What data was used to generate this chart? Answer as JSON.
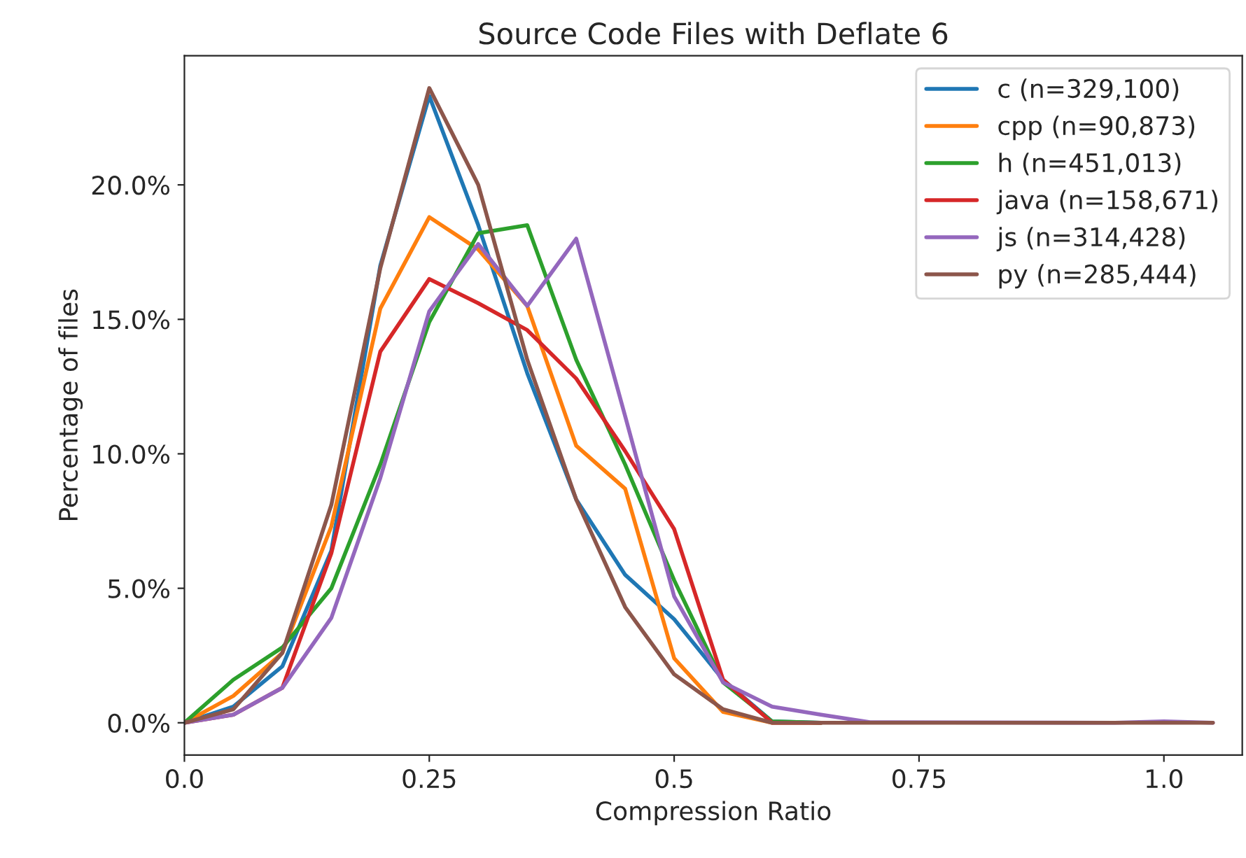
{
  "chart_data": {
    "type": "line",
    "title": "Source Code Files with Deflate 6",
    "xlabel": "Compression Ratio",
    "ylabel": "Percentage of files",
    "x": [
      0,
      0.05,
      0.1,
      0.15,
      0.2,
      0.25,
      0.3,
      0.35,
      0.4,
      0.45,
      0.5,
      0.55,
      0.6,
      0.65,
      0.7,
      0.75,
      0.8,
      0.85,
      0.9,
      0.95,
      1.0,
      1.05
    ],
    "series": [
      {
        "name": "c (n=329,100)",
        "color": "#1f77b4",
        "values": [
          0,
          0.6,
          2.1,
          6.4,
          17.0,
          23.3,
          18.5,
          13.0,
          8.3,
          5.5,
          3.85,
          1.6,
          0.05,
          0,
          null,
          null,
          null,
          null,
          null,
          null,
          null,
          null
        ]
      },
      {
        "name": "cpp (n=90,873)",
        "color": "#ff7f0e",
        "values": [
          0,
          1.0,
          2.6,
          7.3,
          15.4,
          18.8,
          17.6,
          15.5,
          10.3,
          8.7,
          2.4,
          0.4,
          0,
          0,
          null,
          null,
          null,
          null,
          null,
          null,
          null,
          null
        ]
      },
      {
        "name": "h (n=451,013)",
        "color": "#2ca02c",
        "values": [
          0,
          1.6,
          2.8,
          5.0,
          9.6,
          14.9,
          18.2,
          18.5,
          13.5,
          9.6,
          5.3,
          1.5,
          0.05,
          0,
          null,
          null,
          null,
          null,
          null,
          null,
          null,
          null
        ]
      },
      {
        "name": "java (n=158,671)",
        "color": "#d62728",
        "values": [
          0,
          0.3,
          1.3,
          6.3,
          13.8,
          16.5,
          15.6,
          14.6,
          12.8,
          10.1,
          7.2,
          1.6,
          0,
          0,
          null,
          null,
          null,
          null,
          null,
          null,
          null,
          null
        ]
      },
      {
        "name": "js (n=314,428)",
        "color": "#9467bd",
        "values": [
          0,
          0.3,
          1.3,
          3.9,
          9.1,
          15.3,
          17.8,
          15.5,
          18.0,
          11.4,
          4.7,
          1.5,
          0.6,
          0.3,
          0.02,
          null,
          null,
          null,
          null,
          0,
          0.05,
          0
        ]
      },
      {
        "name": "py (n=285,444)",
        "color": "#8c564b",
        "values": [
          0,
          0.5,
          2.6,
          8.1,
          16.9,
          23.6,
          20.0,
          13.5,
          8.3,
          4.3,
          1.8,
          0.5,
          0,
          0,
          0,
          0,
          0,
          0,
          0,
          0,
          0,
          0
        ]
      }
    ],
    "xlim": [
      0,
      1.08
    ],
    "ylim": [
      -1.2,
      24.8
    ],
    "xticks": [
      {
        "value": 0,
        "label": "0.0"
      },
      0.25,
      0.5,
      0.75,
      {
        "value": 1,
        "label": "1.0"
      }
    ],
    "yticks": [
      {
        "value": 0,
        "label": "0.0%"
      },
      {
        "value": 5,
        "label": "5.0%"
      },
      {
        "value": 10,
        "label": "10.0%"
      },
      {
        "value": 15,
        "label": "15.0%"
      },
      {
        "value": 20,
        "label": "20.0%"
      }
    ],
    "legend": "top right",
    "grid": false
  }
}
